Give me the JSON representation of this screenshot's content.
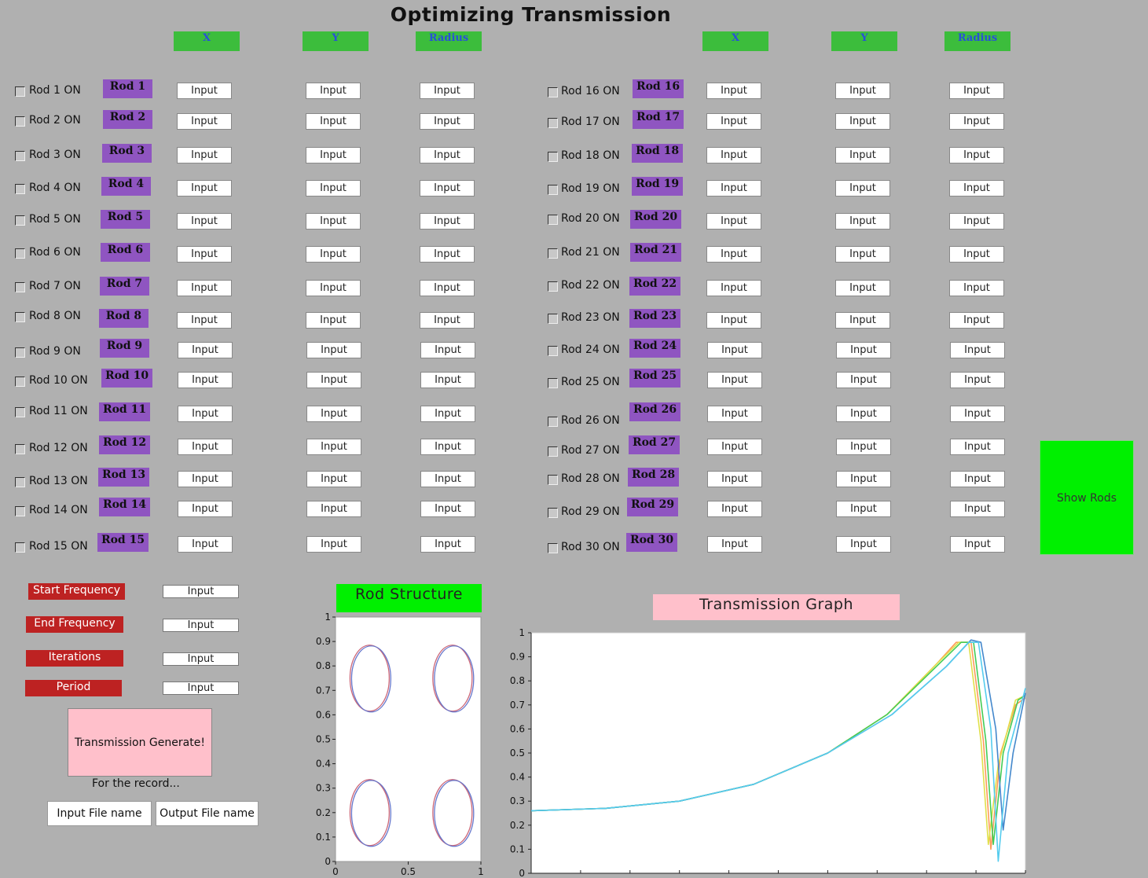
{
  "title": "Optimizing Transmission",
  "column_headers": {
    "left": [
      "X",
      "Y",
      "Radius"
    ],
    "right": [
      "X",
      "Y",
      "Radius"
    ]
  },
  "input_placeholder": "Input",
  "rods": [
    {
      "check": "Rod 1 ON",
      "button": "Rod 1"
    },
    {
      "check": "Rod 2 ON",
      "button": "Rod 2"
    },
    {
      "check": "Rod 3 ON",
      "button": "Rod 3"
    },
    {
      "check": "Rod 4 ON",
      "button": "Rod 4"
    },
    {
      "check": "Rod 5 ON",
      "button": "Rod 5"
    },
    {
      "check": "Rod 6 ON",
      "button": "Rod 6"
    },
    {
      "check": "Rod 7 ON",
      "button": "Rod 7"
    },
    {
      "check": "Rod 8 ON",
      "button": "Rod 8"
    },
    {
      "check": "Rod 9 ON",
      "button": "Rod 9"
    },
    {
      "check": "Rod 10 ON",
      "button": "Rod 10"
    },
    {
      "check": "Rod 11 ON",
      "button": "Rod 11"
    },
    {
      "check": "Rod 12 ON",
      "button": "Rod 12"
    },
    {
      "check": "Rod 13 ON",
      "button": "Rod 13"
    },
    {
      "check": "Rod 14 ON",
      "button": "Rod 14"
    },
    {
      "check": "Rod 15 ON",
      "button": "Rod 15"
    },
    {
      "check": "Rod 16 ON",
      "button": "Rod 16"
    },
    {
      "check": "Rod 17 ON",
      "button": "Rod 17"
    },
    {
      "check": "Rod 18 ON",
      "button": "Rod 18"
    },
    {
      "check": "Rod 19 ON",
      "button": "Rod 19"
    },
    {
      "check": "Rod 20 ON",
      "button": "Rod 20"
    },
    {
      "check": "Rod 21 ON",
      "button": "Rod 21"
    },
    {
      "check": "Rod 22 ON",
      "button": "Rod 22"
    },
    {
      "check": "Rod 23 ON",
      "button": "Rod 23"
    },
    {
      "check": "Rod 24 ON",
      "button": "Rod 24"
    },
    {
      "check": "Rod 25 ON",
      "button": "Rod 25"
    },
    {
      "check": "Rod 26 ON",
      "button": "Rod 26"
    },
    {
      "check": "Rod 27 ON",
      "button": "Rod 27"
    },
    {
      "check": "Rod 28 ON",
      "button": "Rod 28"
    },
    {
      "check": "Rod 29 ON",
      "button": "Rod 29"
    },
    {
      "check": "Rod 30 ON",
      "button": "Rod 30"
    }
  ],
  "show_rods": "Show Rods",
  "settings": {
    "start_frequency": "Start Frequency",
    "end_frequency": "End Frequency",
    "iterations": "Iterations",
    "period": "Period"
  },
  "transmission_generate": "Transmission Generate!",
  "record_label": "For the record...",
  "input_file_name": "Input File name",
  "output_file_name": "Output File name",
  "rod_structure_title": "Rod Structure",
  "transmission_graph_title": "Transmission Graph",
  "colors": {
    "background": "#b0b0b0",
    "column_header": "#3cbd3c",
    "rod_button": "#8f55c1",
    "red_label": "#bd2222",
    "show_rods": "#00f000",
    "pink": "#ffc0cb"
  },
  "chart_data": [
    {
      "type": "scatter",
      "title": "Rod Structure",
      "xlim": [
        0,
        1
      ],
      "ylim": [
        0,
        1
      ],
      "x_ticks": [
        "0",
        "0.5",
        "1"
      ],
      "y_ticks": [
        "0",
        "0.1",
        "0.2",
        "0.3",
        "0.4",
        "0.5",
        "0.6",
        "0.7",
        "0.8",
        "0.9",
        "1"
      ],
      "rods": [
        {
          "x": 0.24,
          "y": 0.75
        },
        {
          "x": 0.81,
          "y": 0.75
        },
        {
          "x": 0.24,
          "y": 0.2
        },
        {
          "x": 0.81,
          "y": 0.2
        }
      ]
    },
    {
      "type": "line",
      "title": "Transmission Graph",
      "ylim": [
        0,
        1
      ],
      "y_ticks": [
        "0",
        "0.1",
        "0.2",
        "0.3",
        "0.4",
        "0.5",
        "0.6",
        "0.7",
        "0.8",
        "0.9",
        "1"
      ],
      "series": [
        {
          "color": "#ff9a5a",
          "values": [
            [
              0,
              0.26
            ],
            [
              0.15,
              0.27
            ],
            [
              0.3,
              0.3
            ],
            [
              0.45,
              0.37
            ],
            [
              0.6,
              0.5
            ],
            [
              0.72,
              0.66
            ],
            [
              0.82,
              0.87
            ],
            [
              0.86,
              0.96
            ],
            [
              0.89,
              0.96
            ],
            [
              0.915,
              0.55
            ],
            [
              0.93,
              0.1
            ],
            [
              0.95,
              0.5
            ],
            [
              0.98,
              0.7
            ],
            [
              1,
              0.73
            ]
          ]
        },
        {
          "color": "#e0e04a",
          "values": [
            [
              0,
              0.26
            ],
            [
              0.15,
              0.27
            ],
            [
              0.3,
              0.3
            ],
            [
              0.45,
              0.37
            ],
            [
              0.6,
              0.5
            ],
            [
              0.72,
              0.66
            ],
            [
              0.82,
              0.87
            ],
            [
              0.865,
              0.96
            ],
            [
              0.885,
              0.96
            ],
            [
              0.91,
              0.55
            ],
            [
              0.925,
              0.12
            ],
            [
              0.945,
              0.45
            ],
            [
              0.98,
              0.72
            ],
            [
              1,
              0.74
            ]
          ]
        },
        {
          "color": "#44cc55",
          "values": [
            [
              0,
              0.26
            ],
            [
              0.15,
              0.27
            ],
            [
              0.3,
              0.3
            ],
            [
              0.45,
              0.37
            ],
            [
              0.6,
              0.5
            ],
            [
              0.72,
              0.66
            ],
            [
              0.82,
              0.86
            ],
            [
              0.87,
              0.96
            ],
            [
              0.895,
              0.96
            ],
            [
              0.92,
              0.55
            ],
            [
              0.935,
              0.12
            ],
            [
              0.955,
              0.5
            ],
            [
              0.985,
              0.72
            ],
            [
              1,
              0.74
            ]
          ]
        },
        {
          "color": "#4488cc",
          "values": [
            [
              0,
              0.26
            ],
            [
              0.15,
              0.27
            ],
            [
              0.3,
              0.3
            ],
            [
              0.45,
              0.37
            ],
            [
              0.6,
              0.5
            ],
            [
              0.73,
              0.66
            ],
            [
              0.84,
              0.86
            ],
            [
              0.89,
              0.97
            ],
            [
              0.91,
              0.96
            ],
            [
              0.94,
              0.6
            ],
            [
              0.955,
              0.18
            ],
            [
              0.975,
              0.5
            ],
            [
              1,
              0.75
            ]
          ]
        },
        {
          "color": "#55ccee",
          "values": [
            [
              0,
              0.26
            ],
            [
              0.15,
              0.27
            ],
            [
              0.3,
              0.3
            ],
            [
              0.45,
              0.37
            ],
            [
              0.6,
              0.5
            ],
            [
              0.73,
              0.66
            ],
            [
              0.84,
              0.86
            ],
            [
              0.885,
              0.96
            ],
            [
              0.905,
              0.96
            ],
            [
              0.93,
              0.6
            ],
            [
              0.945,
              0.05
            ],
            [
              0.965,
              0.5
            ],
            [
              1,
              0.77
            ]
          ]
        }
      ]
    }
  ]
}
